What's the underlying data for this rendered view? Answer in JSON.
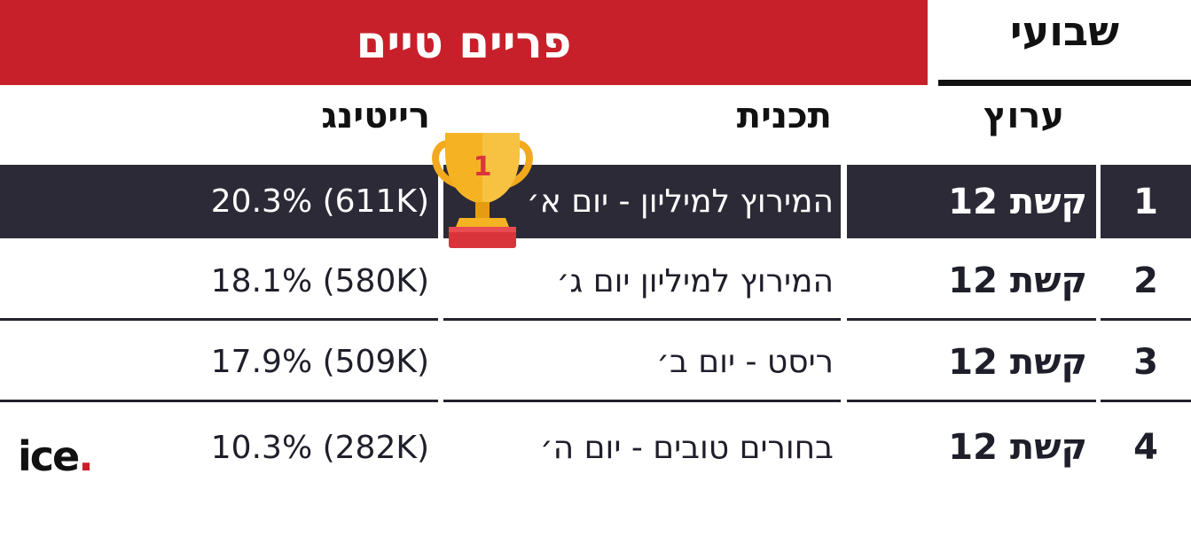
{
  "banner": {
    "title": "פריים טיים",
    "tab": "שבועי"
  },
  "columns": {
    "channel": "ערוץ",
    "program": "תכנית",
    "rating": "רייטינג"
  },
  "rows": [
    {
      "rank": "1",
      "channel": "קשת 12",
      "program": "המירוץ למיליון - יום א׳",
      "rating": "20.3% (611K)"
    },
    {
      "rank": "2",
      "channel": "קשת 12",
      "program": "המירוץ למיליון יום ג׳",
      "rating": "18.1% (580K)"
    },
    {
      "rank": "3",
      "channel": "קשת 12",
      "program": "ריסט - יום ב׳",
      "rating": "17.9% (509K)"
    },
    {
      "rank": "4",
      "channel": "קשת 12",
      "program": "בחורים טובים - יום ה׳",
      "rating": "10.3% (282K)"
    }
  ],
  "trophy": {
    "icon": "trophy-icon",
    "label": "1"
  },
  "logo": {
    "text": "ice",
    "dot": "."
  },
  "colors": {
    "red": "#c8202a",
    "dark_row": "#2b2a36",
    "gold": "#f5b324"
  }
}
